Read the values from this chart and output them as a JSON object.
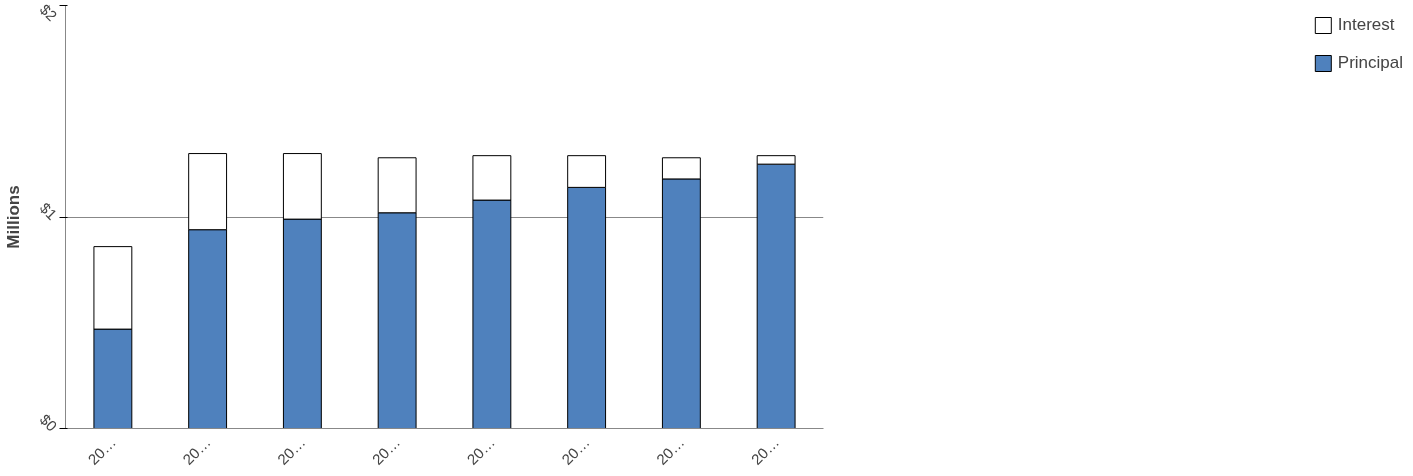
{
  "chart_data": {
    "type": "bar",
    "stacked": true,
    "ylabel": "Millions",
    "categories": [
      "20…",
      "20…",
      "20…",
      "20…",
      "20…",
      "20…",
      "20…",
      "20…"
    ],
    "series": [
      {
        "name": "Principal",
        "color": "#4f81bd",
        "values": [
          0.47,
          0.94,
          0.99,
          1.02,
          1.08,
          1.14,
          1.18,
          1.25
        ]
      },
      {
        "name": "Interest",
        "color": "#ffffff",
        "values": [
          0.39,
          0.36,
          0.31,
          0.26,
          0.21,
          0.15,
          0.1,
          0.04
        ]
      }
    ],
    "ylim": [
      0,
      2
    ],
    "yticks": [
      {
        "value": 0,
        "label": "$0"
      },
      {
        "value": 1,
        "label": "$1"
      },
      {
        "value": 2,
        "label": "$2"
      }
    ],
    "grid": "y",
    "legend": "right"
  }
}
